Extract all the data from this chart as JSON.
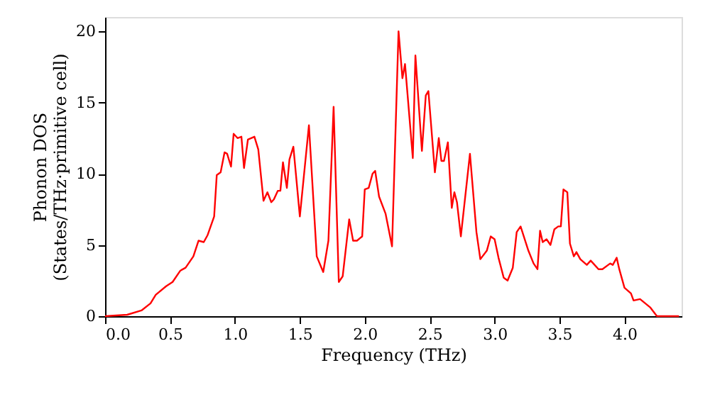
{
  "chart_data": {
    "type": "line",
    "xlabel": "Frequency (THz)",
    "ylabel": "Phonon DOS\n(States/THz·primitive cell)",
    "xlim": [
      0,
      4.44
    ],
    "ylim": [
      0,
      21
    ],
    "xticks": [
      {
        "value": 0,
        "label": "0.0"
      },
      {
        "value": 0.5,
        "label": "0.5"
      },
      {
        "value": 1,
        "label": "1.0"
      },
      {
        "value": 1.5,
        "label": "1.5"
      },
      {
        "value": 2,
        "label": "2.0"
      },
      {
        "value": 2.5,
        "label": "2.5"
      },
      {
        "value": 3,
        "label": "3.0"
      },
      {
        "value": 3.5,
        "label": "3.5"
      },
      {
        "value": 4,
        "label": "4.0"
      }
    ],
    "yticks": [
      0,
      5,
      10,
      15,
      20
    ],
    "grid": false,
    "marker": "none",
    "line_style": "solid",
    "series": [
      {
        "color": "#ff0000",
        "x": [
          0,
          0.17,
          0.28,
          0.35,
          0.39,
          0.47,
          0.52,
          0.58,
          0.62,
          0.68,
          0.72,
          0.76,
          0.79,
          0.84,
          0.86,
          0.89,
          0.92,
          0.94,
          0.97,
          0.99,
          1.02,
          1.05,
          1.07,
          1.1,
          1.15,
          1.18,
          1.22,
          1.25,
          1.28,
          1.3,
          1.33,
          1.35,
          1.37,
          1.4,
          1.42,
          1.45,
          1.5,
          1.57,
          1.63,
          1.68,
          1.72,
          1.76,
          1.8,
          1.83,
          1.88,
          1.91,
          1.94,
          1.98,
          2.0,
          2.03,
          2.06,
          2.08,
          2.11,
          2.16,
          2.21,
          2.26,
          2.29,
          2.31,
          2.37,
          2.39,
          2.44,
          2.47,
          2.49,
          2.54,
          2.57,
          2.59,
          2.61,
          2.64,
          2.67,
          2.69,
          2.71,
          2.74,
          2.81,
          2.86,
          2.89,
          2.94,
          2.97,
          3.0,
          3.03,
          3.07,
          3.1,
          3.14,
          3.17,
          3.2,
          3.26,
          3.3,
          3.33,
          3.35,
          3.37,
          3.4,
          3.43,
          3.46,
          3.49,
          3.51,
          3.53,
          3.56,
          3.58,
          3.61,
          3.63,
          3.66,
          3.71,
          3.74,
          3.76,
          3.8,
          3.83,
          3.89,
          3.91,
          3.94,
          3.96,
          4.0,
          4.05,
          4.07,
          4.12,
          4.16,
          4.2,
          4.25,
          4.42
        ],
        "values": [
          0,
          0.1,
          0.4,
          0.9,
          1.5,
          2.1,
          2.4,
          3.2,
          3.4,
          4.2,
          5.3,
          5.2,
          5.7,
          7.0,
          9.9,
          10.1,
          11.5,
          11.4,
          10.5,
          12.8,
          12.5,
          12.6,
          10.4,
          12.4,
          12.6,
          11.7,
          8.1,
          8.7,
          8.0,
          8.2,
          8.8,
          8.8,
          10.8,
          9.0,
          11.0,
          11.9,
          7.0,
          13.4,
          4.2,
          3.1,
          5.3,
          14.7,
          2.4,
          2.8,
          6.8,
          5.3,
          5.3,
          5.6,
          8.9,
          9.0,
          10.0,
          10.2,
          8.4,
          7.2,
          4.9,
          20.0,
          16.7,
          17.7,
          11.1,
          18.3,
          11.6,
          15.5,
          15.8,
          10.1,
          12.5,
          10.9,
          10.9,
          12.2,
          7.6,
          8.7,
          8.0,
          5.6,
          11.4,
          5.9,
          4.0,
          4.6,
          5.6,
          5.4,
          4.1,
          2.7,
          2.5,
          3.4,
          5.9,
          6.3,
          4.6,
          3.7,
          3.3,
          6.0,
          5.2,
          5.4,
          5.0,
          6.1,
          6.3,
          6.3,
          8.9,
          8.7,
          5.1,
          4.2,
          4.5,
          4.0,
          3.6,
          3.9,
          3.7,
          3.3,
          3.3,
          3.7,
          3.6,
          4.1,
          3.3,
          2.0,
          1.6,
          1.1,
          1.2,
          0.9,
          0.6,
          0,
          0
        ]
      }
    ]
  }
}
